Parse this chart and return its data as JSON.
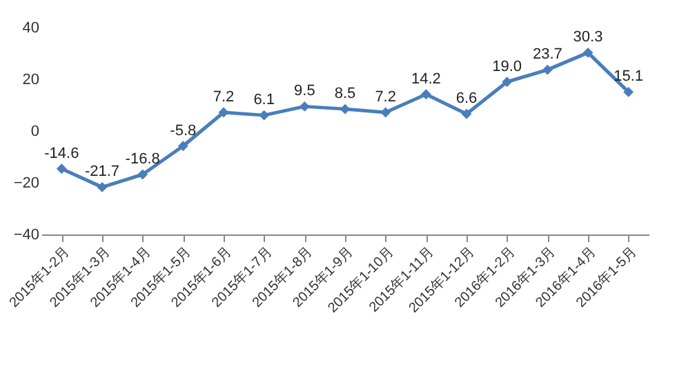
{
  "chart_data": {
    "type": "line",
    "categories": [
      "2015年1-2月",
      "2015年1-3月",
      "2015年1-4月",
      "2015年1-5月",
      "2015年1-6月",
      "2015年1-7月",
      "2015年1-8月",
      "2015年1-9月",
      "2015年1-10月",
      "2015年1-11月",
      "2015年1-12月",
      "2016年1-2月",
      "2016年1-3月",
      "2016年1-4月",
      "2016年1-5月"
    ],
    "series": [
      {
        "color": "#4a7ebb",
        "values": [
          -14.6,
          -21.7,
          -16.8,
          -5.8,
          7.2,
          6.1,
          9.5,
          8.5,
          7.2,
          14.2,
          6.6,
          19.0,
          23.7,
          30.3,
          15.1
        ],
        "value_labels": [
          "-14.6",
          "-21.7",
          "-16.8",
          "-5.8",
          "7.2",
          "6.1",
          "9.5",
          "8.5",
          "7.2",
          "14.2",
          "6.6",
          "19.0",
          "23.7",
          "30.3",
          "15.1"
        ]
      }
    ],
    "ylim": [
      -40,
      40
    ],
    "yticks": [
      -40,
      -20,
      0,
      20,
      40
    ],
    "grid": false,
    "legend": false,
    "marker": "diamond",
    "line_style": "solid"
  }
}
